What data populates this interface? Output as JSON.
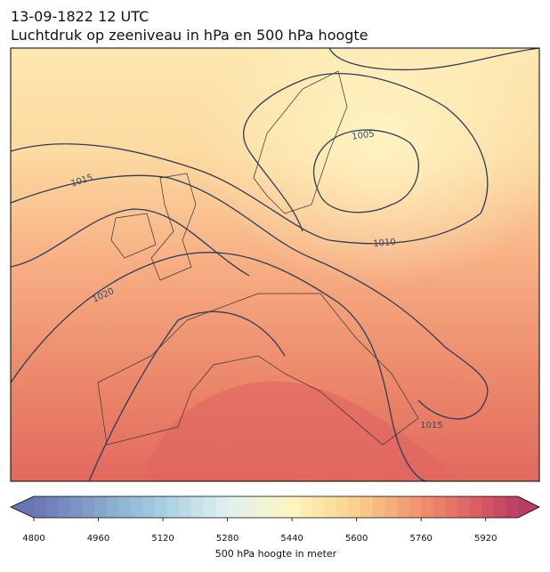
{
  "header": {
    "title": "13-09-1822 12 UTC",
    "subtitle": "Luchtdruk op zeeniveau in hPa en 500 hPa hoogte"
  },
  "map": {
    "contour_labels": [
      1005,
      1010,
      1015,
      1020,
      1015
    ]
  },
  "colorbar": {
    "label": "500 hPa hoogte in meter",
    "lim": [
      4800,
      6000
    ],
    "ticks": [
      4800,
      4960,
      5120,
      5280,
      5440,
      5600,
      5760,
      5920
    ]
  }
}
